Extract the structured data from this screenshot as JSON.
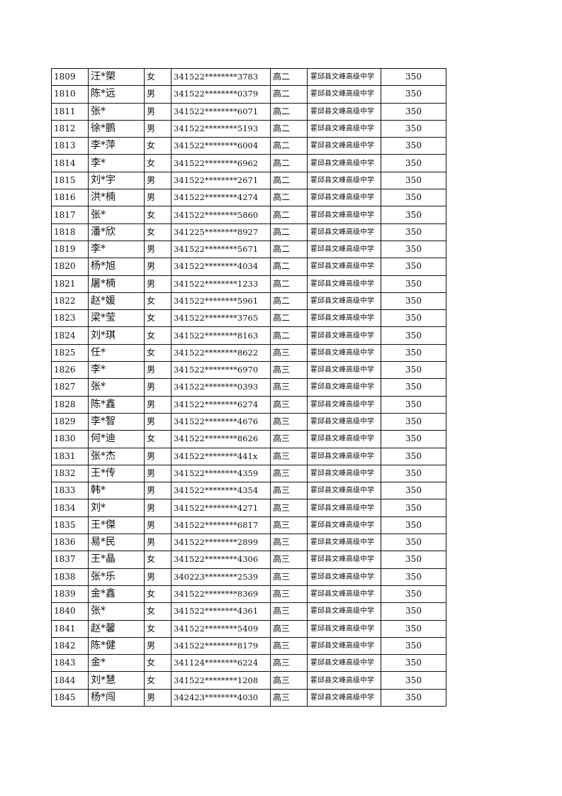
{
  "rows": [
    [
      "1809",
      "汪*槊",
      "女",
      "341522********3783",
      "高二",
      "霍邱县文峰高级中学",
      "350"
    ],
    [
      "1810",
      "陈*远",
      "男",
      "341522********0379",
      "高二",
      "霍邱县文峰高级中学",
      "350"
    ],
    [
      "1811",
      "张*",
      "男",
      "341522********6071",
      "高二",
      "霍邱县文峰高级中学",
      "350"
    ],
    [
      "1812",
      "徐*鹏",
      "男",
      "341522********5193",
      "高二",
      "霍邱县文峰高级中学",
      "350"
    ],
    [
      "1813",
      "李*萍",
      "女",
      "341522********6004",
      "高二",
      "霍邱县文峰高级中学",
      "350"
    ],
    [
      "1814",
      "李*",
      "女",
      "341522********6962",
      "高二",
      "霍邱县文峰高级中学",
      "350"
    ],
    [
      "1815",
      "刘*宇",
      "男",
      "341522********2671",
      "高二",
      "霍邱县文峰高级中学",
      "350"
    ],
    [
      "1816",
      "洪*楠",
      "男",
      "341522********4274",
      "高二",
      "霍邱县文峰高级中学",
      "350"
    ],
    [
      "1817",
      "张*",
      "女",
      "341522********5860",
      "高二",
      "霍邱县文峰高级中学",
      "350"
    ],
    [
      "1818",
      "潘*欣",
      "女",
      "341225********8927",
      "高二",
      "霍邱县文峰高级中学",
      "350"
    ],
    [
      "1819",
      "李*",
      "男",
      "341522********5671",
      "高二",
      "霍邱县文峰高级中学",
      "350"
    ],
    [
      "1820",
      "杨*旭",
      "男",
      "341522********4034",
      "高二",
      "霍邱县文峰高级中学",
      "350"
    ],
    [
      "1821",
      "屠*楠",
      "男",
      "341522********1233",
      "高二",
      "霍邱县文峰高级中学",
      "350"
    ],
    [
      "1822",
      "赵*媛",
      "女",
      "341522********5961",
      "高二",
      "霍邱县文峰高级中学",
      "350"
    ],
    [
      "1823",
      "梁*莹",
      "女",
      "341522********3765",
      "高二",
      "霍邱县文峰高级中学",
      "350"
    ],
    [
      "1824",
      "刘*琪",
      "女",
      "341522********8163",
      "高二",
      "霍邱县文峰高级中学",
      "350"
    ],
    [
      "1825",
      "任*",
      "女",
      "341522********8622",
      "高三",
      "霍邱县文峰高级中学",
      "350"
    ],
    [
      "1826",
      "李*",
      "男",
      "341522********6970",
      "高三",
      "霍邱县文峰高级中学",
      "350"
    ],
    [
      "1827",
      "张*",
      "男",
      "341522********0393",
      "高三",
      "霍邱县文峰高级中学",
      "350"
    ],
    [
      "1828",
      "陈*鑫",
      "男",
      "341522********6274",
      "高三",
      "霍邱县文峰高级中学",
      "350"
    ],
    [
      "1829",
      "李*智",
      "男",
      "341522********4676",
      "高三",
      "霍邱县文峰高级中学",
      "350"
    ],
    [
      "1830",
      "何*迪",
      "女",
      "341522********8626",
      "高三",
      "霍邱县文峰高级中学",
      "350"
    ],
    [
      "1831",
      "张*杰",
      "男",
      "341522********441x",
      "高三",
      "霍邱县文峰高级中学",
      "350"
    ],
    [
      "1832",
      "王*传",
      "男",
      "341522********4359",
      "高三",
      "霍邱县文峰高级中学",
      "350"
    ],
    [
      "1833",
      "韩*",
      "男",
      "341522********4354",
      "高三",
      "霍邱县文峰高级中学",
      "350"
    ],
    [
      "1834",
      "刘*",
      "男",
      "341522********4271",
      "高三",
      "霍邱县文峰高级中学",
      "350"
    ],
    [
      "1835",
      "王*傑",
      "男",
      "341522********6817",
      "高三",
      "霍邱县文峰高级中学",
      "350"
    ],
    [
      "1836",
      "易*民",
      "男",
      "341522********2899",
      "高三",
      "霍邱县文峰高级中学",
      "350"
    ],
    [
      "1837",
      "王*晶",
      "女",
      "341522********4306",
      "高三",
      "霍邱县文峰高级中学",
      "350"
    ],
    [
      "1838",
      "张*乐",
      "男",
      "340223********2539",
      "高三",
      "霍邱县文峰高级中学",
      "350"
    ],
    [
      "1839",
      "金*鑫",
      "女",
      "341522********8369",
      "高三",
      "霍邱县文峰高级中学",
      "350"
    ],
    [
      "1840",
      "张*",
      "女",
      "341522********4361",
      "高三",
      "霍邱县文峰高级中学",
      "350"
    ],
    [
      "1841",
      "赵*馨",
      "女",
      "341522********5409",
      "高三",
      "霍邱县文峰高级中学",
      "350"
    ],
    [
      "1842",
      "陈*健",
      "男",
      "341522********8179",
      "高三",
      "霍邱县文峰高级中学",
      "350"
    ],
    [
      "1843",
      "金*",
      "女",
      "341124********6224",
      "高三",
      "霍邱县文峰高级中学",
      "350"
    ],
    [
      "1844",
      "刘*慧",
      "女",
      "341522********1208",
      "高三",
      "霍邱县文峰高级中学",
      "350"
    ],
    [
      "1845",
      "杨*闯",
      "男",
      "342423********4030",
      "高三",
      "霍邱县文峰高级中学",
      "350"
    ]
  ]
}
